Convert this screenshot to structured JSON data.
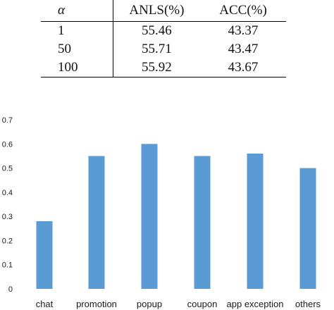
{
  "table": {
    "headers": [
      "α",
      "ANLS(%)",
      "ACC(%)"
    ],
    "rows": [
      {
        "alpha": "1",
        "anls": "55.46",
        "acc": "43.37",
        "bold": false
      },
      {
        "alpha": "50",
        "anls": "55.71",
        "acc": "43.47",
        "bold": false
      },
      {
        "alpha": "100",
        "anls": "55.92",
        "acc": "43.67",
        "bold": true
      }
    ]
  },
  "chart_data": {
    "type": "bar",
    "categories": [
      "chat",
      "promotion",
      "popup",
      "coupon",
      "app exception",
      "others"
    ],
    "values": [
      0.28,
      0.55,
      0.6,
      0.55,
      0.56,
      0.5
    ],
    "yticks": [
      "0",
      "0.1",
      "0.2",
      "0.3",
      "0.4",
      "0.5",
      "0.6",
      "0.7"
    ],
    "ylim": [
      0,
      0.7
    ],
    "title": "",
    "xlabel": "",
    "ylabel": "",
    "grid": false,
    "bar_color": "#5b9bd5"
  }
}
